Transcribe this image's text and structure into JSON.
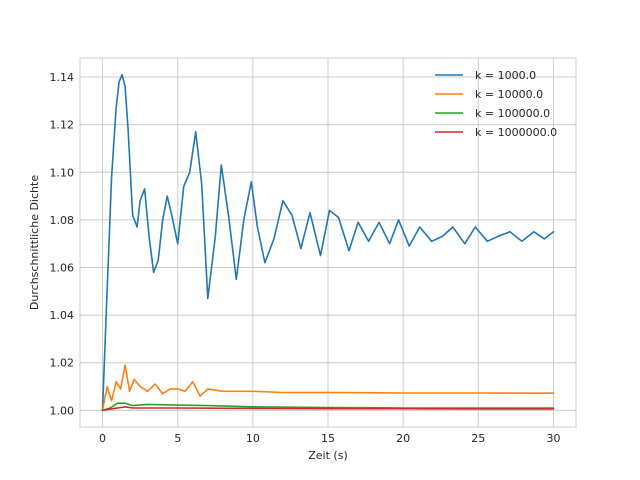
{
  "chart_data": {
    "type": "line",
    "title": "",
    "xlabel": "Zeit (s)",
    "ylabel": "Durchschnittliche Dichte",
    "xlim": [
      -1.5,
      31.5
    ],
    "ylim": [
      0.993,
      1.148
    ],
    "xticks": [
      0,
      5,
      10,
      15,
      20,
      25,
      30
    ],
    "xtick_labels": [
      "0",
      "5",
      "10",
      "15",
      "20",
      "25",
      "30"
    ],
    "yticks": [
      1.0,
      1.02,
      1.04,
      1.06,
      1.08,
      1.1,
      1.12,
      1.14
    ],
    "ytick_labels": [
      "1.00",
      "1.02",
      "1.04",
      "1.06",
      "1.08",
      "1.10",
      "1.12",
      "1.14"
    ],
    "grid": true,
    "legend_position": "top-right",
    "series": [
      {
        "name": "k = 1000.0",
        "color": "#1f77b4",
        "x": [
          0,
          0.3,
          0.6,
          0.9,
          1.1,
          1.3,
          1.5,
          1.7,
          2.0,
          2.3,
          2.5,
          2.8,
          3.1,
          3.4,
          3.7,
          4.0,
          4.3,
          4.6,
          5.0,
          5.4,
          5.8,
          6.2,
          6.6,
          7.0,
          7.5,
          7.9,
          8.4,
          8.9,
          9.4,
          9.9,
          10.3,
          10.8,
          11.4,
          12.0,
          12.6,
          13.2,
          13.8,
          14.5,
          15.1,
          15.7,
          16.4,
          17.0,
          17.7,
          18.4,
          19.1,
          19.7,
          20.4,
          21.1,
          21.9,
          22.6,
          23.3,
          24.1,
          24.8,
          25.6,
          26.3,
          27.1,
          27.9,
          28.7,
          29.4,
          30.0
        ],
        "y": [
          1.0,
          1.05,
          1.098,
          1.127,
          1.138,
          1.141,
          1.136,
          1.118,
          1.082,
          1.077,
          1.088,
          1.093,
          1.073,
          1.058,
          1.063,
          1.08,
          1.09,
          1.082,
          1.07,
          1.094,
          1.1,
          1.117,
          1.095,
          1.047,
          1.073,
          1.103,
          1.081,
          1.055,
          1.08,
          1.096,
          1.077,
          1.062,
          1.072,
          1.088,
          1.082,
          1.068,
          1.083,
          1.065,
          1.084,
          1.081,
          1.067,
          1.079,
          1.071,
          1.079,
          1.07,
          1.08,
          1.069,
          1.077,
          1.071,
          1.073,
          1.077,
          1.07,
          1.077,
          1.071,
          1.073,
          1.075,
          1.071,
          1.075,
          1.072,
          1.075
        ]
      },
      {
        "name": "k = 10000.0",
        "color": "#ff7f0e",
        "x": [
          0,
          0.3,
          0.6,
          0.9,
          1.2,
          1.5,
          1.8,
          2.1,
          2.5,
          3.0,
          3.5,
          4.0,
          4.5,
          5.0,
          5.5,
          6.0,
          6.5,
          7.0,
          8.0,
          10.0,
          12.0,
          15.0,
          20.0,
          25.0,
          30.0
        ],
        "y": [
          1.0,
          1.01,
          1.004,
          1.012,
          1.009,
          1.019,
          1.008,
          1.013,
          1.01,
          1.008,
          1.011,
          1.007,
          1.009,
          1.009,
          1.008,
          1.012,
          1.006,
          1.009,
          1.008,
          1.008,
          1.0075,
          1.0075,
          1.0073,
          1.0073,
          1.0072
        ]
      },
      {
        "name": "k = 100000.0",
        "color": "#2ca02c",
        "x": [
          0,
          0.5,
          1.0,
          1.5,
          2.0,
          3.0,
          5.0,
          7.0,
          10.0,
          15.0,
          20.0,
          25.0,
          30.0
        ],
        "y": [
          1.0,
          1.001,
          1.003,
          1.003,
          1.002,
          1.0025,
          1.0022,
          1.002,
          1.0015,
          1.0012,
          1.001,
          1.001,
          1.001
        ]
      },
      {
        "name": "k = 1000000.0",
        "color": "#d62728",
        "x": [
          0,
          0.5,
          1.0,
          1.5,
          2.0,
          3.0,
          5.0,
          10.0,
          15.0,
          20.0,
          25.0,
          30.0
        ],
        "y": [
          1.0,
          1.0005,
          1.001,
          1.0015,
          1.001,
          1.001,
          1.001,
          1.0008,
          1.0007,
          1.0007,
          1.0006,
          1.0006
        ]
      }
    ]
  }
}
